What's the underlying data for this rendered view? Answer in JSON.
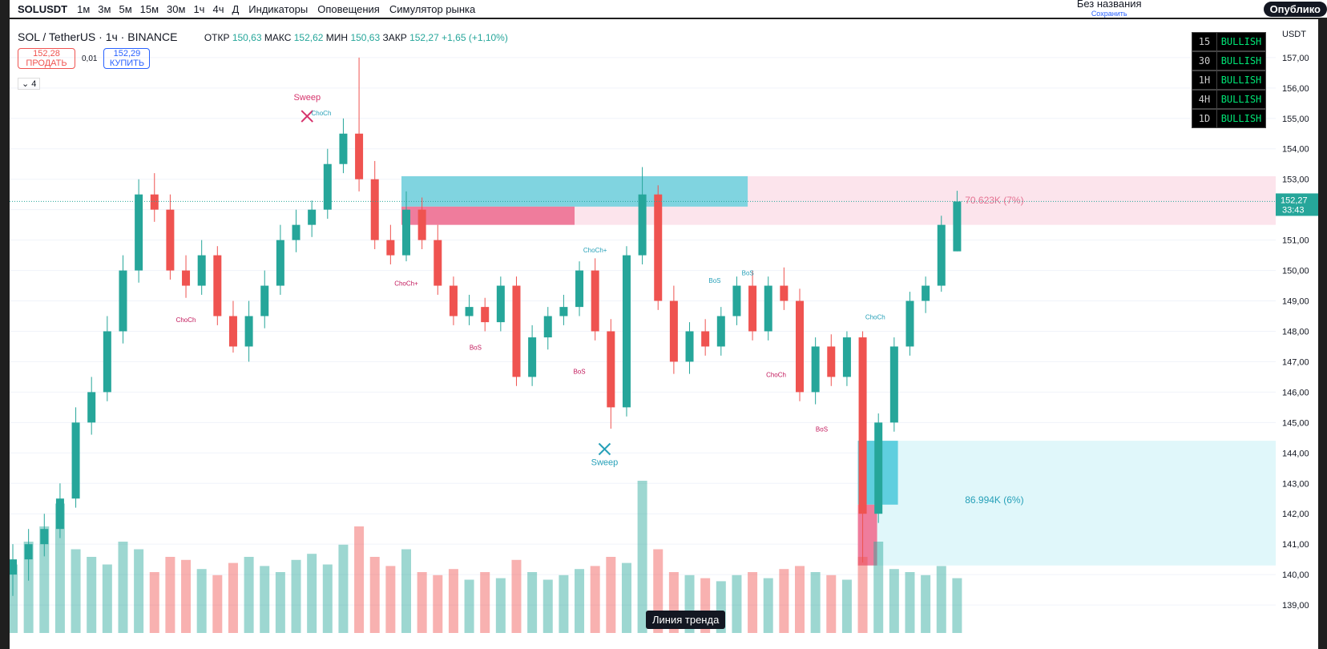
{
  "toolbar": {
    "symbol": "SOLUSDT",
    "intervals": [
      "1м",
      "3м",
      "5м",
      "15м",
      "30м",
      "1ч",
      "4ч",
      "Д"
    ],
    "indicators": "Индикаторы",
    "alerts": "Оповещения",
    "replay": "Симулятор рынка",
    "layout_name": "Без названия",
    "save": "Сохранить",
    "publish": "Опублико"
  },
  "legend": {
    "title": "SOL / TetherUS · 1ч · BINANCE",
    "open_label": "ОТКР",
    "open": "150,63",
    "high_label": "МАКС",
    "high": "152,62",
    "low_label": "МИН",
    "low": "150,63",
    "close_label": "ЗАКР",
    "close": "152,27",
    "change": "+1,65 (+1,10%)"
  },
  "trade": {
    "sell_price": "152,28",
    "sell": "ПРОДАТЬ",
    "spread": "0,01",
    "buy_price": "152,29",
    "buy": "КУПИТЬ"
  },
  "indicators_count": "4",
  "chart_data": {
    "type": "candlestick",
    "currency": "USDT",
    "ylim": [
      138.08,
      157.84
    ],
    "yticks": [
      {
        "value": 139,
        "label": "139,00"
      },
      {
        "value": 140,
        "label": "140,00"
      },
      {
        "value": 141,
        "label": "141,00"
      },
      {
        "value": 142,
        "label": "142,00"
      },
      {
        "value": 143,
        "label": "143,00"
      },
      {
        "value": 144,
        "label": "144,00"
      },
      {
        "value": 145,
        "label": "145,00"
      },
      {
        "value": 146,
        "label": "146,00"
      },
      {
        "value": 147,
        "label": "147,00"
      },
      {
        "value": 148,
        "label": "148,00"
      },
      {
        "value": 149,
        "label": "149,00"
      },
      {
        "value": 150,
        "label": "150,00"
      },
      {
        "value": 151,
        "label": "151,00"
      },
      {
        "value": 152,
        "label": "152,00"
      },
      {
        "value": 153,
        "label": "153,00"
      },
      {
        "value": 154,
        "label": "154,00"
      },
      {
        "value": 155,
        "label": "155,00"
      },
      {
        "value": 156,
        "label": "156,00"
      },
      {
        "value": 157,
        "label": "157,00"
      }
    ],
    "last_price": {
      "value": 152.27,
      "label": "152,27"
    },
    "countdown": "33:43",
    "up_color": "#26a69a",
    "down_color": "#ef5350",
    "open": [
      140,
      140.5,
      141,
      141.5,
      142.5,
      145,
      146,
      148,
      150,
      152.5,
      152,
      150,
      149.5,
      150.5,
      148.5,
      147.5,
      148.5,
      149.5,
      151,
      151.5,
      152,
      153.5,
      154.5,
      153,
      151,
      150.5,
      152,
      151,
      149.5,
      148.5,
      148.8,
      148.3,
      149.5,
      146.5,
      147.8,
      148.5,
      148.8,
      150,
      148,
      145.5,
      150.5,
      152.5,
      149,
      147,
      148,
      147.5,
      148.5,
      149.5,
      148,
      149.5,
      149,
      146,
      147.5,
      146.5,
      147.8,
      142,
      145,
      147.5,
      149,
      149.5,
      150.63
    ],
    "high": [
      141,
      141.5,
      142,
      143,
      145.5,
      146.5,
      148.5,
      150.5,
      153,
      153.2,
      152.5,
      150.5,
      151,
      150.8,
      149,
      149,
      150,
      151.5,
      152,
      152.3,
      154,
      155,
      157,
      153.6,
      151.5,
      152.6,
      152.4,
      151.5,
      149.8,
      149.2,
      149.1,
      149.8,
      149.8,
      148.2,
      148.8,
      149.2,
      150.3,
      150.4,
      148.4,
      150.8,
      153.4,
      152.8,
      149.5,
      148.3,
      148.4,
      148.8,
      149.8,
      150,
      149.8,
      150.1,
      149.4,
      147.8,
      147.9,
      148,
      148,
      145.3,
      147.8,
      149.3,
      149.8,
      151.8,
      152.62
    ],
    "low": [
      139.3,
      139.8,
      140.6,
      141.2,
      142.2,
      144.6,
      145.7,
      147.6,
      149.6,
      151.6,
      149.7,
      149.1,
      149.2,
      148.2,
      147.3,
      147,
      148.1,
      149.2,
      150.6,
      151.1,
      151.7,
      153.2,
      152.6,
      150.7,
      150.2,
      150.3,
      150.7,
      149.2,
      148.2,
      148.2,
      148,
      148,
      146.2,
      146.2,
      147.4,
      148.2,
      148.5,
      147.7,
      144.8,
      145.2,
      150.2,
      148.7,
      146.6,
      146.6,
      147.2,
      147.2,
      148.2,
      147.7,
      147.7,
      148.7,
      145.7,
      145.6,
      146.2,
      146.2,
      140.4,
      141.7,
      144.7,
      147.2,
      148.6,
      149.3,
      150.63
    ],
    "close": [
      140.5,
      141,
      141.5,
      142.5,
      145,
      146,
      148,
      150,
      152.5,
      152,
      150,
      149.5,
      150.5,
      148.5,
      147.5,
      148.5,
      149.5,
      151,
      151.5,
      152,
      153.5,
      154.5,
      153,
      151,
      150.5,
      152,
      151,
      149.5,
      148.5,
      148.8,
      148.3,
      149.5,
      146.5,
      147.8,
      148.5,
      148.8,
      150,
      148,
      145.5,
      150.5,
      152.5,
      149,
      147,
      148,
      147.5,
      148.5,
      149.5,
      148,
      149.5,
      149,
      146,
      147.5,
      146.5,
      147.8,
      142,
      145,
      147.5,
      149,
      149.5,
      151.5,
      152.27
    ],
    "volume": [
      45,
      60,
      70,
      85,
      55,
      50,
      45,
      60,
      55,
      40,
      50,
      48,
      42,
      38,
      46,
      50,
      44,
      40,
      48,
      52,
      45,
      58,
      70,
      50,
      44,
      55,
      40,
      38,
      42,
      35,
      40,
      36,
      48,
      40,
      35,
      38,
      42,
      44,
      50,
      46,
      100,
      55,
      40,
      38,
      36,
      34,
      38,
      40,
      36,
      42,
      44,
      40,
      38,
      35,
      50,
      60,
      42,
      40,
      38,
      44,
      36
    ],
    "annotations": [
      {
        "text": "Sweep",
        "price": 155.6,
        "index": 18.7,
        "color": "#d6336c",
        "marker": true
      },
      {
        "text": "ChoCh",
        "price": 155.1,
        "index": 19.6,
        "color": "#26a0b8",
        "marker": false
      },
      {
        "text": "ChoCh",
        "price": 148.3,
        "index": 11,
        "color": "#c2185b",
        "marker": false
      },
      {
        "text": "ChoCh+",
        "price": 149.5,
        "index": 25,
        "color": "#c2185b",
        "marker": false
      },
      {
        "text": "BoS",
        "price": 147.4,
        "index": 29.4,
        "color": "#c2185b",
        "marker": false
      },
      {
        "text": "BoS",
        "price": 146.6,
        "index": 36,
        "color": "#c2185b",
        "marker": false
      },
      {
        "text": "ChoCh+",
        "price": 150.6,
        "index": 37,
        "color": "#26a0b8",
        "marker": false
      },
      {
        "text": "Sweep",
        "price": 143.6,
        "index": 37.6,
        "color": "#26a0b8",
        "marker": true
      },
      {
        "text": "BoS",
        "price": 149.6,
        "index": 44.6,
        "color": "#26a0b8",
        "marker": false
      },
      {
        "text": "BoS",
        "price": 149.85,
        "index": 46.7,
        "color": "#26a0b8",
        "marker": false
      },
      {
        "text": "ChoCh",
        "price": 146.5,
        "index": 48.5,
        "color": "#c2185b",
        "marker": false
      },
      {
        "text": "BoS",
        "price": 144.7,
        "index": 51.4,
        "color": "#c2185b",
        "marker": false
      },
      {
        "text": "ChoCh",
        "price": 148.4,
        "index": 54.8,
        "color": "#26a0b8",
        "marker": false
      },
      {
        "text": "70.623K (7%)",
        "price": 152.2,
        "index": 60.5,
        "color": "#e57393",
        "marker": false
      },
      {
        "text": "86.994K (6%)",
        "price": 142.35,
        "index": 60.5,
        "color": "#26a0b8",
        "marker": false
      }
    ]
  },
  "table": {
    "rows": [
      [
        "15",
        "BULLISH"
      ],
      [
        "30",
        "BULLISH"
      ],
      [
        "1H",
        "BULLISH"
      ],
      [
        "4H",
        "BULLISH"
      ],
      [
        "1D",
        "BULLISH"
      ]
    ]
  },
  "tooltip": "Линия тренда"
}
